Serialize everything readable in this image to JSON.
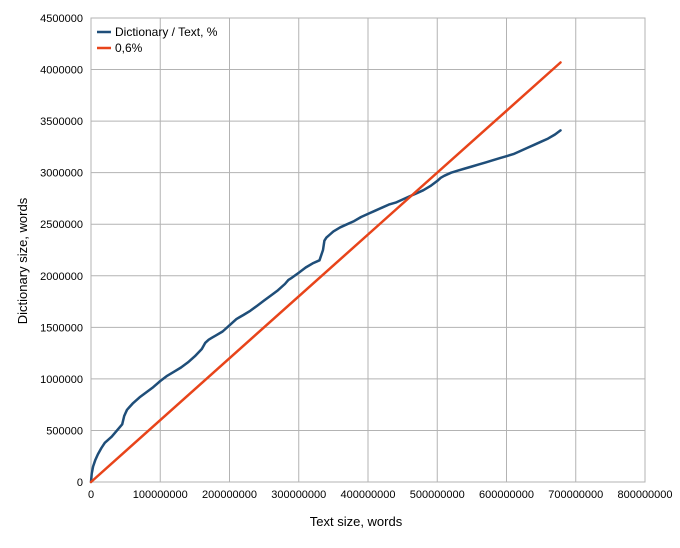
{
  "chart_data": {
    "type": "line",
    "xlabel": "Text size, words",
    "ylabel": "Dictionary size, words",
    "xlim": [
      0,
      800000000
    ],
    "ylim": [
      0,
      4500000
    ],
    "x_ticks": [
      "0",
      "100000000",
      "200000000",
      "300000000",
      "400000000",
      "500000000",
      "600000000",
      "700000000",
      "800000000"
    ],
    "y_ticks": [
      "0",
      "500000",
      "1000000",
      "1500000",
      "2000000",
      "2500000",
      "3000000",
      "3500000",
      "4000000",
      "4500000"
    ],
    "x_tick_values": [
      0,
      100000000,
      200000000,
      300000000,
      400000000,
      500000000,
      600000000,
      700000000,
      800000000
    ],
    "y_tick_values": [
      0,
      500000,
      1000000,
      1500000,
      2000000,
      2500000,
      3000000,
      3500000,
      4000000,
      4500000
    ],
    "grid": true,
    "legend_position": "top-left",
    "series": [
      {
        "name": "Dictionary / Text, %",
        "color": "#1f4e79",
        "x": [
          0,
          1000000,
          3000000,
          6000000,
          10000000,
          15000000,
          20000000,
          30000000,
          40000000,
          45000000,
          48000000,
          52000000,
          60000000,
          70000000,
          80000000,
          90000000,
          100000000,
          110000000,
          120000000,
          130000000,
          140000000,
          150000000,
          160000000,
          165000000,
          170000000,
          175000000,
          180000000,
          190000000,
          200000000,
          210000000,
          215000000,
          220000000,
          230000000,
          240000000,
          250000000,
          260000000,
          270000000,
          280000000,
          285000000,
          290000000,
          300000000,
          310000000,
          320000000,
          330000000,
          335000000,
          337000000,
          340000000,
          345000000,
          350000000,
          360000000,
          370000000,
          380000000,
          390000000,
          400000000,
          410000000,
          420000000,
          430000000,
          440000000,
          450000000,
          460000000,
          470000000,
          480000000,
          490000000,
          500000000,
          505000000,
          510000000,
          520000000,
          530000000,
          540000000,
          550000000,
          560000000,
          570000000,
          580000000,
          590000000,
          600000000,
          610000000,
          620000000,
          630000000,
          640000000,
          650000000,
          660000000,
          670000000,
          678000000
        ],
        "values": [
          0,
          80000,
          150000,
          210000,
          270000,
          330000,
          380000,
          440000,
          520000,
          560000,
          640000,
          700000,
          760000,
          820000,
          870000,
          920000,
          980000,
          1030000,
          1070000,
          1110000,
          1160000,
          1220000,
          1290000,
          1350000,
          1380000,
          1400000,
          1420000,
          1460000,
          1520000,
          1580000,
          1600000,
          1620000,
          1660000,
          1710000,
          1760000,
          1810000,
          1860000,
          1920000,
          1960000,
          1980000,
          2030000,
          2080000,
          2120000,
          2150000,
          2250000,
          2340000,
          2370000,
          2400000,
          2430000,
          2470000,
          2500000,
          2530000,
          2570000,
          2600000,
          2630000,
          2660000,
          2690000,
          2710000,
          2740000,
          2770000,
          2800000,
          2830000,
          2870000,
          2920000,
          2950000,
          2970000,
          3000000,
          3020000,
          3040000,
          3060000,
          3080000,
          3100000,
          3120000,
          3140000,
          3160000,
          3180000,
          3210000,
          3240000,
          3270000,
          3300000,
          3330000,
          3370000,
          3410000
        ]
      },
      {
        "name": "0,6%",
        "color": "#e8441a",
        "x": [
          0,
          678000000
        ],
        "values": [
          0,
          4068000
        ]
      }
    ]
  }
}
